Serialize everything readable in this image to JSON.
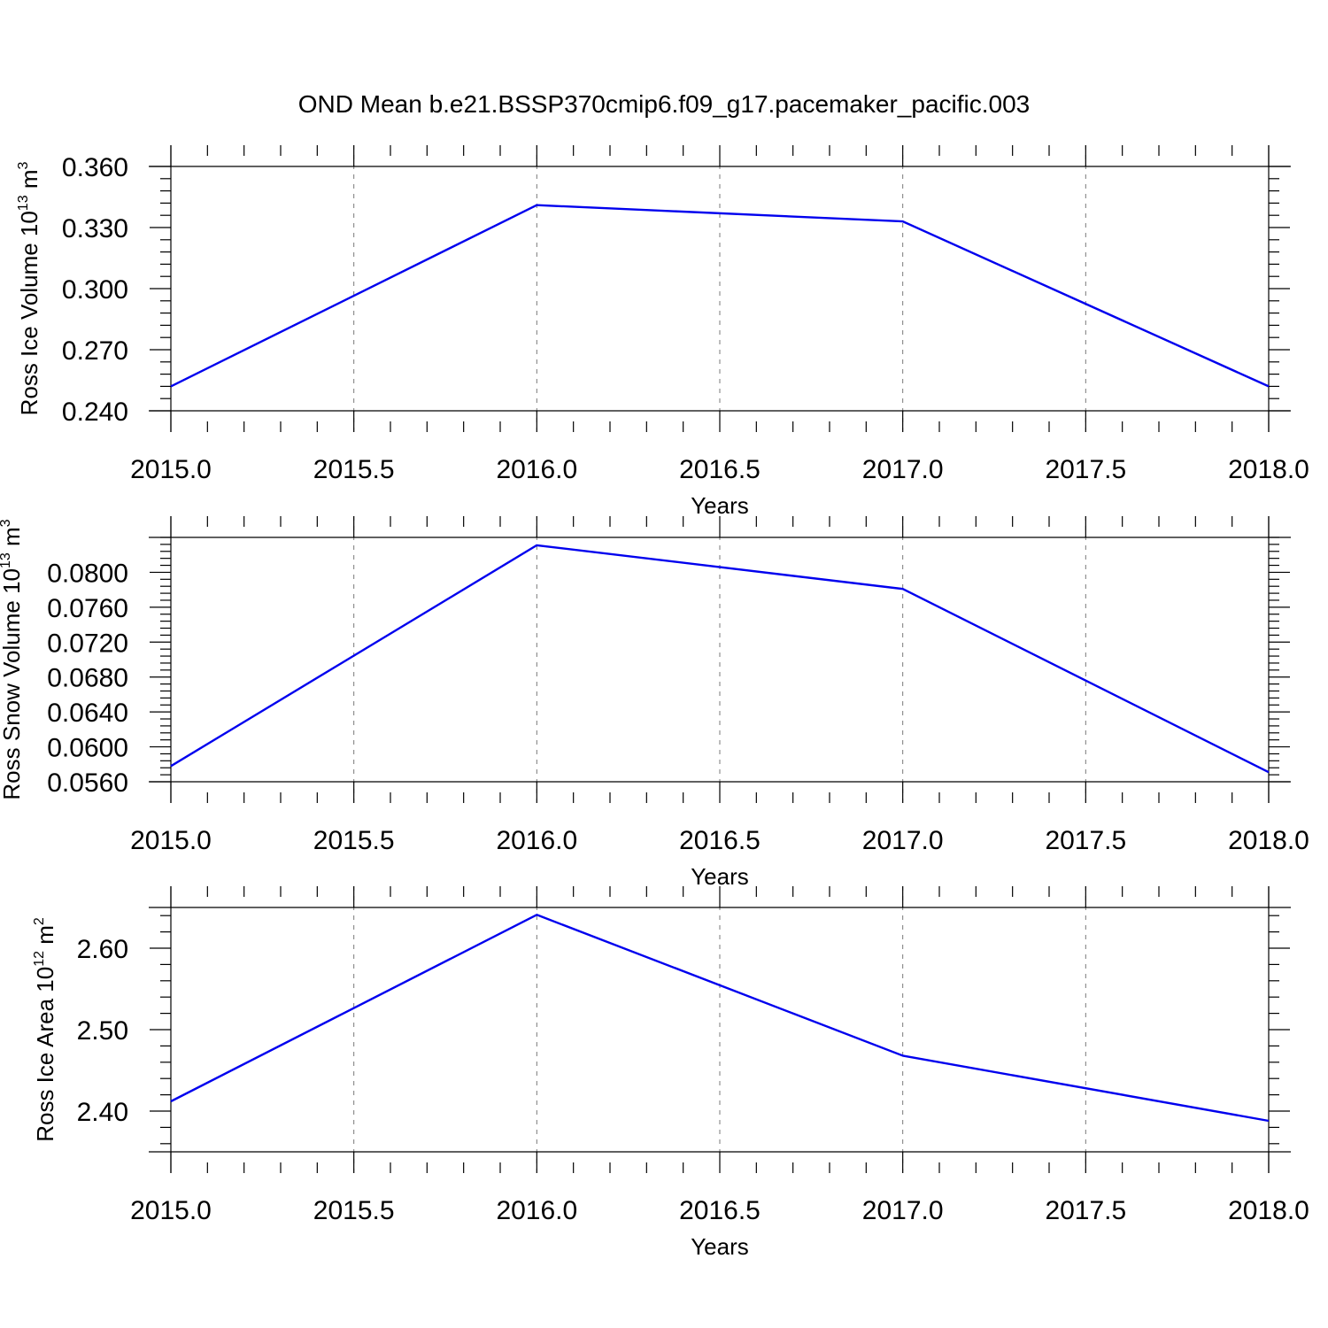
{
  "title": "OND Mean b.e21.BSSP370cmip6.f09_g17.pacemaker_pacific.003",
  "colors": {
    "line": "#0000ee",
    "axis": "#000000",
    "grid": "#7a7a7a",
    "background": "#ffffff"
  },
  "chart_data": [
    {
      "type": "line",
      "ylabel": "Ross Ice Volume 10",
      "ylabel_exponent": "13",
      "ylabel_unit": "m",
      "ylabel_unit_exponent": "3",
      "xlabel": "Years",
      "xlim": [
        2015.0,
        2018.0
      ],
      "ylim": [
        0.24,
        0.36
      ],
      "xticks": [
        "2015.0",
        "2015.5",
        "2016.0",
        "2016.5",
        "2017.0",
        "2017.5",
        "2018.0"
      ],
      "yticks": [
        "0.240",
        "0.270",
        "0.300",
        "0.330",
        "0.360"
      ],
      "x_grid": true,
      "series": [
        {
          "x": [
            2015.0,
            2016.0,
            2017.0,
            2018.0
          ],
          "values": [
            0.252,
            0.341,
            0.333,
            0.252
          ]
        }
      ]
    },
    {
      "type": "line",
      "ylabel": "Ross Snow Volume 10",
      "ylabel_exponent": "13",
      "ylabel_unit": "m",
      "ylabel_unit_exponent": "3",
      "xlabel": "Years",
      "xlim": [
        2015.0,
        2018.0
      ],
      "ylim": [
        0.056,
        0.084
      ],
      "xticks": [
        "2015.0",
        "2015.5",
        "2016.0",
        "2016.5",
        "2017.0",
        "2017.5",
        "2018.0"
      ],
      "yticks": [
        "0.0560",
        "0.0600",
        "0.0640",
        "0.0680",
        "0.0720",
        "0.0760",
        "0.0800"
      ],
      "x_grid": true,
      "series": [
        {
          "x": [
            2015.0,
            2016.0,
            2017.0,
            2018.0
          ],
          "values": [
            0.0578,
            0.0831,
            0.0781,
            0.0571
          ]
        }
      ]
    },
    {
      "type": "line",
      "ylabel": "Ross Ice Area 10",
      "ylabel_exponent": "12",
      "ylabel_unit": "m",
      "ylabel_unit_exponent": "2",
      "xlabel": "Years",
      "xlim": [
        2015.0,
        2018.0
      ],
      "ylim": [
        2.35,
        2.65
      ],
      "xticks": [
        "2015.0",
        "2015.5",
        "2016.0",
        "2016.5",
        "2017.0",
        "2017.5",
        "2018.0"
      ],
      "yticks": [
        "2.40",
        "2.50",
        "2.60"
      ],
      "x_grid": true,
      "series": [
        {
          "x": [
            2015.0,
            2016.0,
            2017.0,
            2018.0
          ],
          "values": [
            2.412,
            2.641,
            2.468,
            2.388
          ]
        }
      ]
    }
  ]
}
